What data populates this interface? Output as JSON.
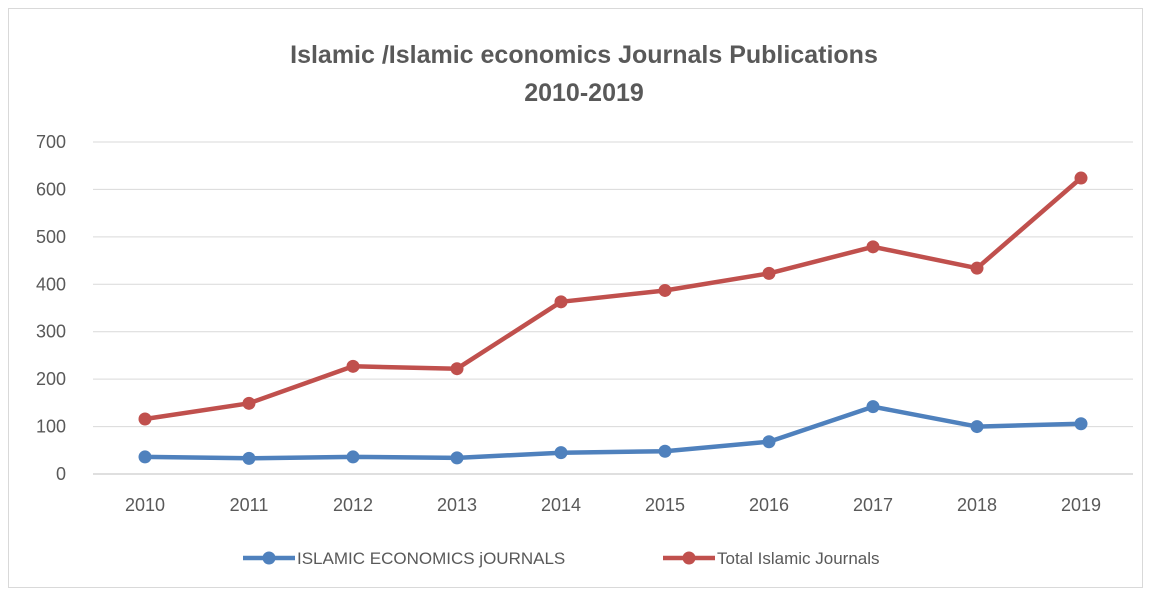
{
  "chart_data": {
    "type": "line",
    "title_lines": [
      "Islamic /Islamic economics Journals Publications",
      "2010-2019"
    ],
    "xlabel": "",
    "ylabel": "",
    "categories": [
      "2010",
      "2011",
      "2012",
      "2013",
      "2014",
      "2015",
      "2016",
      "2017",
      "2018",
      "2019"
    ],
    "ylim": [
      0,
      700
    ],
    "yticks": [
      "0",
      "100",
      "200",
      "300",
      "400",
      "500",
      "600",
      "700"
    ],
    "grid": true,
    "legend_position": "bottom",
    "series": [
      {
        "name": "ISLAMIC ECONOMICS jOURNALS",
        "color": "#4f81bd",
        "marker": "circle",
        "values": [
          36,
          33,
          36,
          34,
          45,
          48,
          68,
          142,
          100,
          106
        ]
      },
      {
        "name": "Total Islamic Journals",
        "color": "#c0504d",
        "marker": "circle",
        "values": [
          116,
          149,
          227,
          222,
          363,
          387,
          423,
          479,
          434,
          624
        ]
      }
    ]
  }
}
